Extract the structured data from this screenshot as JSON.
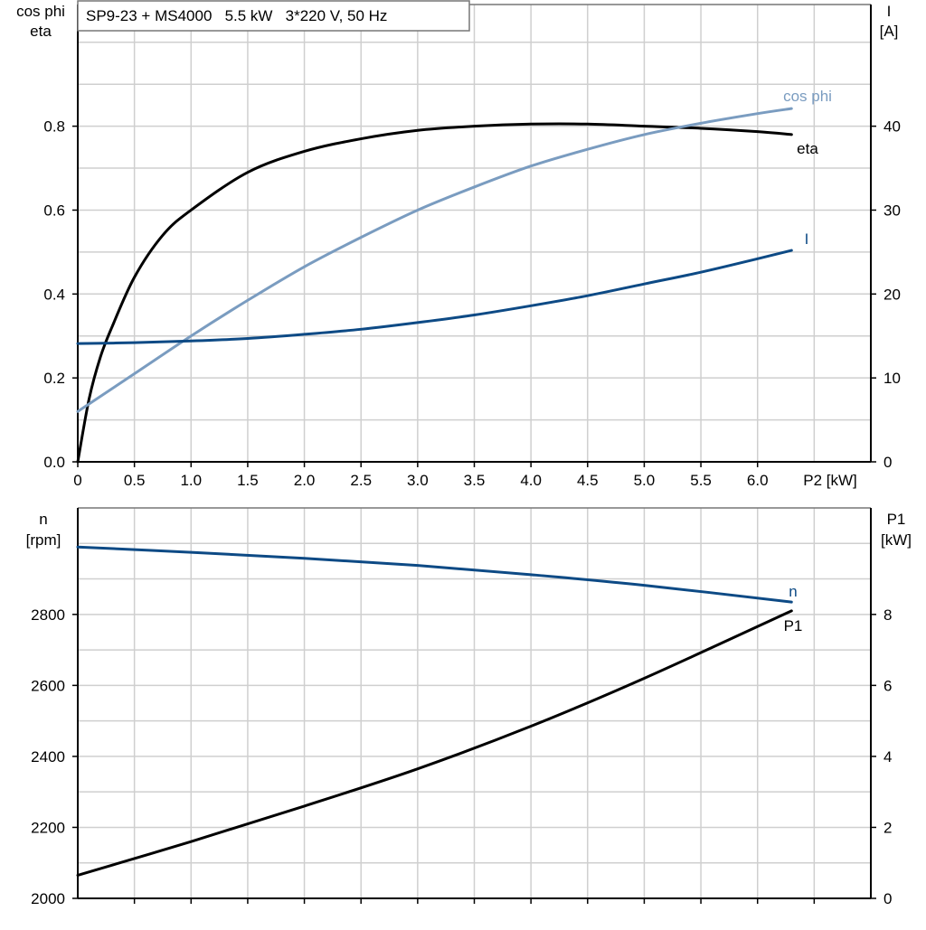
{
  "chart_data": [
    {
      "type": "line",
      "title": "SP9-23 + MS4000   5.5 kW   3*220 V, 50 Hz",
      "xlabel": "P2 [kW]",
      "ylabel": [
        "cos phi",
        "eta"
      ],
      "ylabel_right": [
        "I",
        "[A]"
      ],
      "xlim": [
        0,
        7
      ],
      "ylim": [
        0,
        1.09
      ],
      "ylim_right": [
        0,
        54.5
      ],
      "grid": true,
      "x_ticks": [
        "0",
        "0.5",
        "1.0",
        "1.5",
        "2.0",
        "2.5",
        "3.0",
        "3.5",
        "4.0",
        "4.5",
        "5.0",
        "5.5",
        "6.0"
      ],
      "x_tick_values": [
        0,
        0.5,
        1,
        1.5,
        2,
        2.5,
        3,
        3.5,
        4,
        4.5,
        5,
        5.5,
        6
      ],
      "y_ticks": [
        "0.0",
        "0.2",
        "0.4",
        "0.6",
        "0.8"
      ],
      "y_tick_values": [
        0,
        0.2,
        0.4,
        0.6,
        0.8
      ],
      "y_ticks_right": [
        "0",
        "10",
        "20",
        "30",
        "40"
      ],
      "y_tick_values_right": [
        0,
        10,
        20,
        30,
        40
      ],
      "series": [
        {
          "name": "eta",
          "axis": "left",
          "color": "#000000",
          "x": [
            0,
            0.1,
            0.2,
            0.3,
            0.5,
            0.75,
            1,
            1.5,
            2,
            2.5,
            3,
            3.5,
            4,
            4.5,
            5,
            5.5,
            6,
            6.3
          ],
          "y": [
            0,
            0.15,
            0.25,
            0.32,
            0.44,
            0.54,
            0.6,
            0.69,
            0.74,
            0.77,
            0.79,
            0.8,
            0.805,
            0.805,
            0.8,
            0.795,
            0.787,
            0.78
          ]
        },
        {
          "name": "cos phi",
          "axis": "left",
          "color": "#7a9cc0",
          "x": [
            0,
            0.5,
            1,
            1.5,
            2,
            2.5,
            3,
            3.5,
            4,
            4.5,
            5,
            5.5,
            6,
            6.3
          ],
          "y": [
            0.12,
            0.21,
            0.3,
            0.385,
            0.465,
            0.535,
            0.6,
            0.655,
            0.705,
            0.745,
            0.78,
            0.807,
            0.83,
            0.842
          ]
        },
        {
          "name": "I",
          "axis": "right",
          "color": "#0d4a85",
          "x": [
            0,
            0.5,
            1,
            1.5,
            2,
            2.5,
            3,
            3.5,
            4,
            4.5,
            5,
            5.5,
            6,
            6.3
          ],
          "y": [
            14.1,
            14.2,
            14.4,
            14.7,
            15.2,
            15.8,
            16.6,
            17.5,
            18.6,
            19.8,
            21.2,
            22.6,
            24.2,
            25.2
          ]
        }
      ]
    },
    {
      "type": "line",
      "ylabel": [
        "n",
        "[rpm]"
      ],
      "ylabel_right": [
        "P1",
        "[kW]"
      ],
      "xlim": [
        0,
        7
      ],
      "ylim": [
        2000,
        3100
      ],
      "ylim_right": [
        0,
        11
      ],
      "grid": true,
      "y_ticks": [
        "2000",
        "2200",
        "2400",
        "2600",
        "2800"
      ],
      "y_tick_values": [
        2000,
        2200,
        2400,
        2600,
        2800
      ],
      "y_ticks_right": [
        "0",
        "2",
        "4",
        "6",
        "8"
      ],
      "y_tick_values_right": [
        0,
        2,
        4,
        6,
        8
      ],
      "series": [
        {
          "name": "n",
          "axis": "left",
          "color": "#0d4a85",
          "x": [
            0,
            1,
            2,
            3,
            4,
            5,
            6.3
          ],
          "y": [
            2990,
            2975,
            2958,
            2938,
            2912,
            2882,
            2835
          ]
        },
        {
          "name": "P1",
          "axis": "right",
          "color": "#000000",
          "x": [
            0,
            1,
            2,
            3,
            4,
            5,
            6.3
          ],
          "y": [
            0.65,
            1.6,
            2.6,
            3.65,
            4.85,
            6.2,
            8.1
          ]
        }
      ]
    }
  ]
}
